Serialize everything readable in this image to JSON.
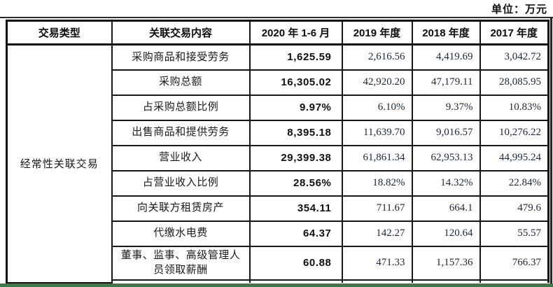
{
  "unit_label": "单位：万元",
  "table": {
    "headers": [
      "交易类型",
      "关联交易内容",
      "2020 年 1-6 月",
      "2019 年度",
      "2018 年度",
      "2017 年度"
    ],
    "category": "经常性关联交易",
    "rows": [
      {
        "label": "采购商品和接受劳务",
        "v2020": "1,625.59",
        "v2019": "2,616.56",
        "v2018": "4,419.69",
        "v2017": "3,042.72"
      },
      {
        "label": "采购总额",
        "v2020": "16,305.02",
        "v2019": "42,920.20",
        "v2018": "47,179.11",
        "v2017": "28,085.95"
      },
      {
        "label": "占采购总额比例",
        "v2020": "9.97%",
        "v2019": "6.10%",
        "v2018": "9.37%",
        "v2017": "10.83%"
      },
      {
        "label": "出售商品和提供劳务",
        "v2020": "8,395.18",
        "v2019": "11,639.70",
        "v2018": "9,016.57",
        "v2017": "10,276.22"
      },
      {
        "label": "营业收入",
        "v2020": "29,399.38",
        "v2019": "61,861.34",
        "v2018": "62,953.13",
        "v2017": "44,995.24"
      },
      {
        "label": "占营业收入比例",
        "v2020": "28.56%",
        "v2019": "18.82%",
        "v2018": "14.32%",
        "v2017": "22.84%"
      },
      {
        "label": "向关联方租赁房产",
        "v2020": "354.11",
        "v2019": "711.67",
        "v2018": "664.1",
        "v2017": "479.6"
      },
      {
        "label": "代缴水电费",
        "v2020": "64.37",
        "v2019": "142.27",
        "v2018": "120.64",
        "v2017": "55.57"
      },
      {
        "label": "董事、监事、高级管理人员领取薪酬",
        "v2020": "60.88",
        "v2019": "471.33",
        "v2018": "1,157.36",
        "v2017": "766.37"
      }
    ]
  },
  "colors": {
    "border": "#161616",
    "outer_border": "#0d0d0d",
    "numeric_text": "#1f2633",
    "bottom_highlight": "#3e7a44"
  }
}
